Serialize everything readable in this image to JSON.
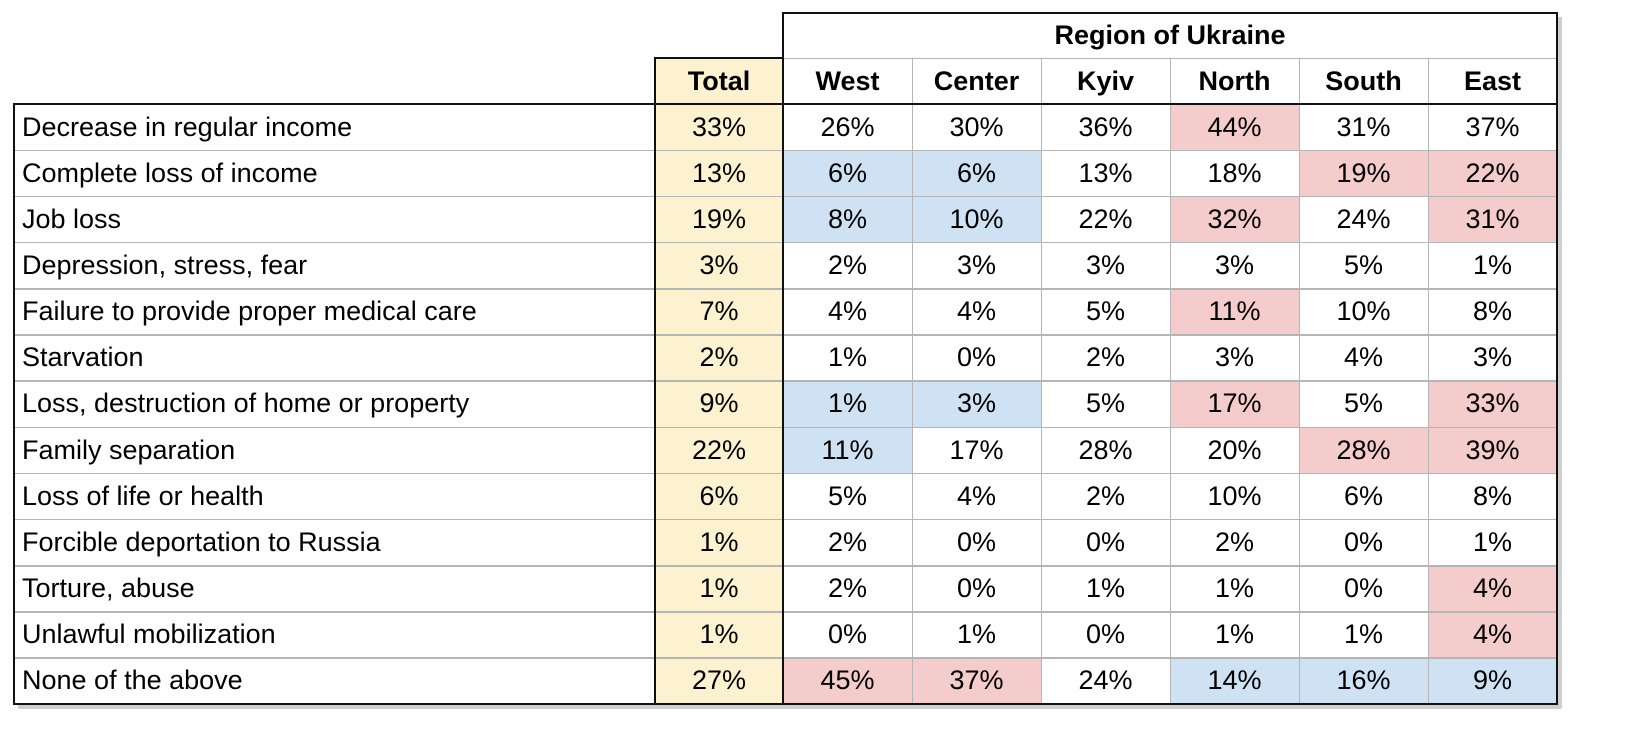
{
  "chart_data": {
    "type": "table",
    "group_header": "Region of Ukraine",
    "total_header": "Total",
    "columns": [
      "West",
      "Center",
      "Kyiv",
      "North",
      "South",
      "East"
    ],
    "colors": {
      "total": "#fdf2d0",
      "high": "#f4cccc",
      "low": "#cfe2f3"
    },
    "rows": [
      {
        "label": "Decrease in regular income",
        "total": "33%",
        "values": [
          "26%",
          "30%",
          "36%",
          "44%",
          "31%",
          "37%"
        ],
        "highlight": [
          "",
          "",
          "",
          "high",
          "",
          ""
        ]
      },
      {
        "label": "Complete loss of income",
        "total": "13%",
        "values": [
          "6%",
          "6%",
          "13%",
          "18%",
          "19%",
          "22%"
        ],
        "highlight": [
          "low",
          "low",
          "",
          "",
          "high",
          "high"
        ]
      },
      {
        "label": "Job loss",
        "total": "19%",
        "values": [
          "8%",
          "10%",
          "22%",
          "32%",
          "24%",
          "31%"
        ],
        "highlight": [
          "low",
          "low",
          "",
          "high",
          "",
          "high"
        ]
      },
      {
        "label": "Depression, stress, fear",
        "total": "3%",
        "values": [
          "2%",
          "3%",
          "3%",
          "3%",
          "5%",
          "1%"
        ],
        "highlight": [
          "",
          "",
          "",
          "",
          "",
          ""
        ]
      },
      {
        "label": "Failure to provide proper medical care",
        "total": "7%",
        "values": [
          "4%",
          "4%",
          "5%",
          "11%",
          "10%",
          "8%"
        ],
        "highlight": [
          "",
          "",
          "",
          "high",
          "",
          ""
        ]
      },
      {
        "label": "Starvation",
        "total": "2%",
        "values": [
          "1%",
          "0%",
          "2%",
          "3%",
          "4%",
          "3%"
        ],
        "highlight": [
          "",
          "",
          "",
          "",
          "",
          ""
        ]
      },
      {
        "label": "Loss, destruction of home or property",
        "total": "9%",
        "values": [
          "1%",
          "3%",
          "5%",
          "17%",
          "5%",
          "33%"
        ],
        "highlight": [
          "low",
          "low",
          "",
          "high",
          "",
          "high"
        ]
      },
      {
        "label": "Family separation",
        "total": "22%",
        "values": [
          "11%",
          "17%",
          "28%",
          "20%",
          "28%",
          "39%"
        ],
        "highlight": [
          "low",
          "",
          "",
          "",
          "high",
          "high"
        ]
      },
      {
        "label": "Loss of life or health",
        "total": "6%",
        "values": [
          "5%",
          "4%",
          "2%",
          "10%",
          "6%",
          "8%"
        ],
        "highlight": [
          "",
          "",
          "",
          "",
          "",
          ""
        ]
      },
      {
        "label": "Forcible deportation to Russia",
        "total": "1%",
        "values": [
          "2%",
          "0%",
          "0%",
          "2%",
          "0%",
          "1%"
        ],
        "highlight": [
          "",
          "",
          "",
          "",
          "",
          ""
        ]
      },
      {
        "label": "Torture, abuse",
        "total": "1%",
        "values": [
          "2%",
          "0%",
          "1%",
          "1%",
          "0%",
          "4%"
        ],
        "highlight": [
          "",
          "",
          "",
          "",
          "",
          "high"
        ]
      },
      {
        "label": "Unlawful mobilization",
        "total": "1%",
        "values": [
          "0%",
          "1%",
          "0%",
          "1%",
          "1%",
          "4%"
        ],
        "highlight": [
          "",
          "",
          "",
          "",
          "",
          "high"
        ]
      },
      {
        "label": "None of the above",
        "total": "27%",
        "values": [
          "45%",
          "37%",
          "24%",
          "14%",
          "16%",
          "9%"
        ],
        "highlight": [
          "high",
          "high",
          "",
          "low",
          "low",
          "low"
        ]
      }
    ]
  }
}
